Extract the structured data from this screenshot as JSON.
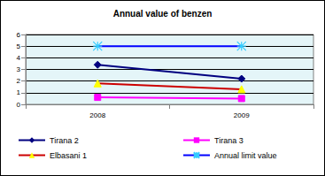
{
  "chart_data": {
    "type": "line",
    "title": "Annual value of benzen",
    "categories": [
      "2008",
      "2009"
    ],
    "series": [
      {
        "name": "Tirana 2",
        "color": "#000080",
        "marker": "diamond",
        "values": [
          3.4,
          2.2
        ]
      },
      {
        "name": "Tirana 3",
        "color": "#ff00ff",
        "marker": "square",
        "values": [
          0.6,
          0.5
        ]
      },
      {
        "name": "Elbasani 1",
        "color": "#cc0000",
        "marker": "triangle",
        "values": [
          1.8,
          1.3
        ]
      },
      {
        "name": "Annual limit value",
        "color": "#0000ff",
        "marker": "x",
        "values": [
          5,
          5
        ]
      }
    ],
    "ylim": [
      0,
      6
    ],
    "yticks": [
      0,
      1,
      2,
      3,
      4,
      5,
      6
    ],
    "grid": true,
    "legend": "bottom"
  }
}
